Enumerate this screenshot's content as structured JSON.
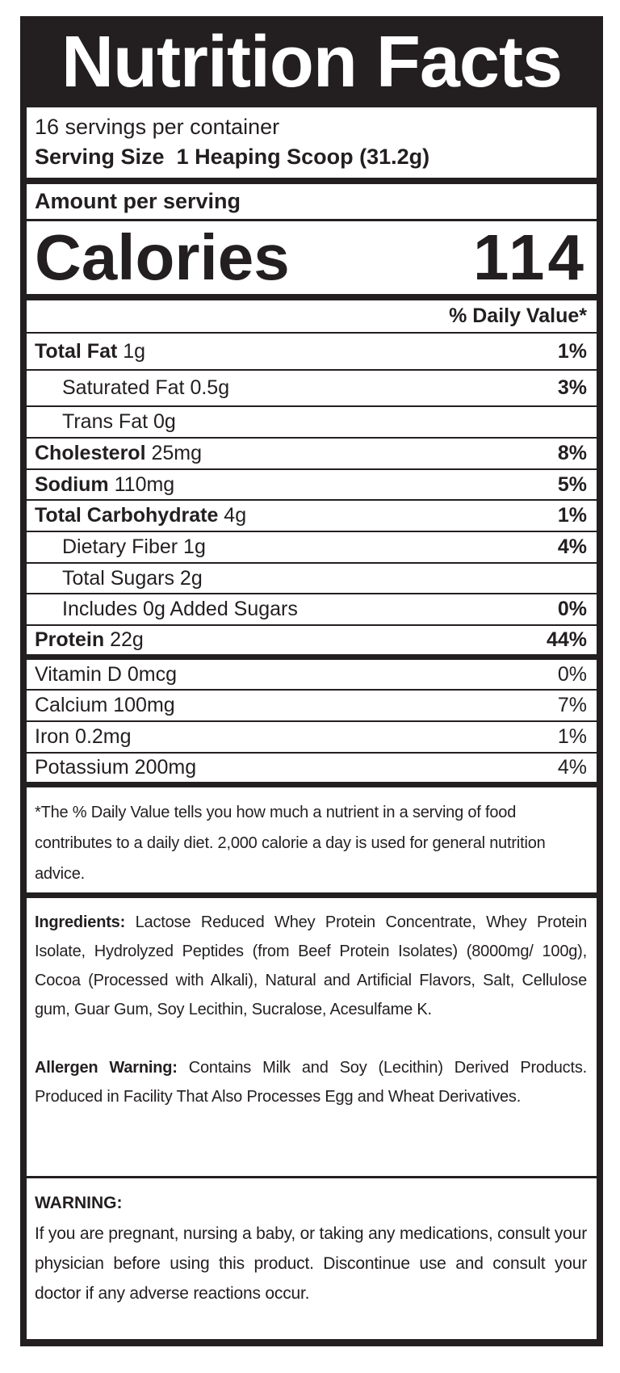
{
  "title": "Nutrition Facts",
  "servings_per_container": "16 servings per container",
  "serving_size_label": "Serving Size",
  "serving_size_value": "1 Heaping Scoop (31.2g)",
  "amount_per_serving": "Amount per serving",
  "calories_label": "Calories",
  "calories_value": "114",
  "daily_value_header": "% Daily Value*",
  "nutrients": [
    {
      "name": "Total Fat",
      "amount": "1g",
      "dv": "1%",
      "bold": true,
      "indent": false
    },
    {
      "name": "Saturated Fat",
      "amount": "0.5g",
      "dv": "3%",
      "bold": false,
      "indent": true
    },
    {
      "name": "Trans Fat",
      "amount": "0g",
      "dv": "",
      "bold": false,
      "indent": true
    },
    {
      "name": "Cholesterol",
      "amount": "25mg",
      "dv": "8%",
      "bold": true,
      "indent": false
    },
    {
      "name": "Sodium",
      "amount": "110mg",
      "dv": "5%",
      "bold": true,
      "indent": false
    },
    {
      "name": "Total Carbohydrate",
      "amount": "4g",
      "dv": "1%",
      "bold": true,
      "indent": false
    },
    {
      "name": "Dietary Fiber",
      "amount": "1g",
      "dv": "4%",
      "bold": false,
      "indent": true
    },
    {
      "name": "Total Sugars",
      "amount": "2g",
      "dv": "",
      "bold": false,
      "indent": true
    },
    {
      "name": "Includes 0g Added Sugars",
      "amount": "",
      "dv": "0%",
      "bold": false,
      "indent": true
    },
    {
      "name": "Protein",
      "amount": "22g",
      "dv": "44%",
      "bold": true,
      "indent": false
    }
  ],
  "vitamins": [
    {
      "name": "Vitamin D",
      "amount": "0mcg",
      "dv": "0%"
    },
    {
      "name": "Calcium",
      "amount": "100mg",
      "dv": "7%"
    },
    {
      "name": "Iron",
      "amount": "0.2mg",
      "dv": "1%"
    },
    {
      "name": "Potassium",
      "amount": "200mg",
      "dv": "4%"
    }
  ],
  "footnote": "*The % Daily Value tells you how much a nutrient in a serving of food contributes to a daily diet. 2,000 calorie a day is used for general nutrition advice.",
  "ingredients_label": "Ingredients:",
  "ingredients_text": "Lactose Reduced Whey Protein Concentrate, Whey Protein Isolate, Hydrolyzed Peptides (from Beef Protein Isolates) (8000mg/ 100g), Cocoa (Processed with Alkali), Natural and Artificial Flavors, Salt, Cellulose gum, Guar Gum, Soy Lecithin, Sucralose, Acesulfame K.",
  "allergen_label": "Allergen Warning:",
  "allergen_text": "Contains Milk and Soy (Lecithin) Derived Products. Produced in Facility That Also Processes Egg and Wheat Derivatives.",
  "warning_label": "WARNING:",
  "warning_text": "If you are pregnant, nursing a baby, or taking any medications, consult your physician before using this product. Discontinue use and consult your doctor if any adverse reactions occur."
}
